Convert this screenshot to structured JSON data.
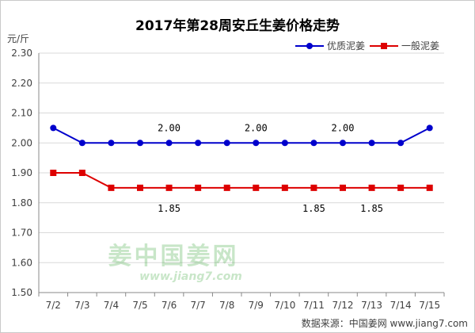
{
  "chart_data": {
    "type": "line",
    "title": "2017年第28周安丘生姜价格走势",
    "ylabel": "元/斤",
    "xlabel": "",
    "categories": [
      "7/2",
      "7/3",
      "7/4",
      "7/5",
      "7/6",
      "7/7",
      "7/8",
      "7/9",
      "7/10",
      "7/11",
      "7/12",
      "7/13",
      "7/14",
      "7/15"
    ],
    "ylim": [
      1.5,
      2.3
    ],
    "yticks": [
      "1.50",
      "1.60",
      "1.70",
      "1.80",
      "1.90",
      "2.00",
      "2.10",
      "2.20",
      "2.30"
    ],
    "grid": true,
    "legend_position": "top-right",
    "series": [
      {
        "name": "优质泥姜",
        "color": "#0000cc",
        "marker": "circle",
        "values": [
          2.05,
          2.0,
          2.0,
          2.0,
          2.0,
          2.0,
          2.0,
          2.0,
          2.0,
          2.0,
          2.0,
          2.0,
          2.0,
          2.05
        ]
      },
      {
        "name": "一般泥姜",
        "color": "#dd0000",
        "marker": "square",
        "values": [
          1.9,
          1.9,
          1.85,
          1.85,
          1.85,
          1.85,
          1.85,
          1.85,
          1.85,
          1.85,
          1.85,
          1.85,
          1.85,
          1.85
        ]
      }
    ],
    "annotations": [
      {
        "series": 0,
        "index": 4,
        "text": "2.00",
        "position": "above"
      },
      {
        "series": 0,
        "index": 7,
        "text": "2.00",
        "position": "above"
      },
      {
        "series": 0,
        "index": 10,
        "text": "2.00",
        "position": "above"
      },
      {
        "series": 1,
        "index": 4,
        "text": "1.85",
        "position": "below"
      },
      {
        "series": 1,
        "index": 9,
        "text": "1.85",
        "position": "below"
      },
      {
        "series": 1,
        "index": 11,
        "text": "1.85",
        "position": "below"
      }
    ]
  },
  "watermark": {
    "text": "姜中国姜网",
    "url": "www.jiang7.com"
  },
  "source": "数据来源：中国姜网 www.jiang7.com"
}
